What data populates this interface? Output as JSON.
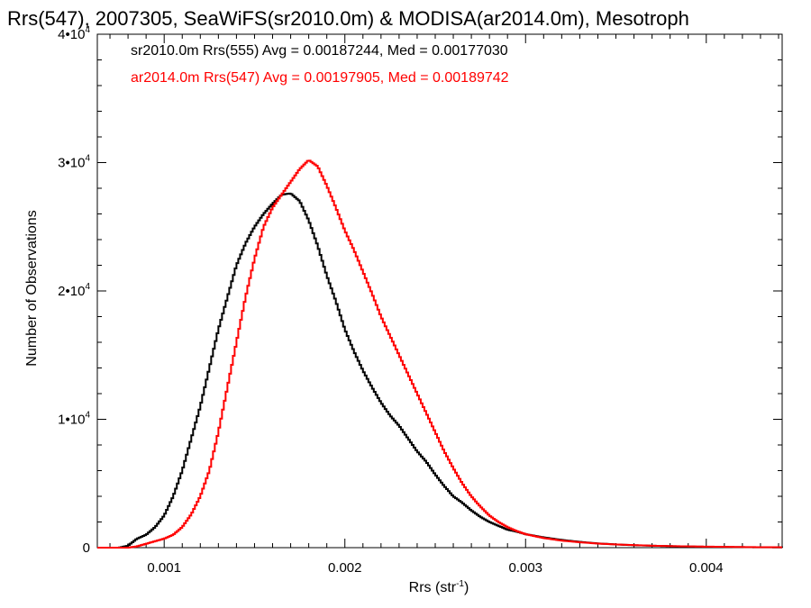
{
  "chart_data": {
    "type": "histogram-step",
    "title": "Rrs(547), 2007305, SeaWiFS(sr2010.0m) & MODISA(ar2014.0m), Mesotroph",
    "xlabel_main": "Rrs (str",
    "xlabel_sup": "-1",
    "xlabel_end": ")",
    "ylabel": "Number of Observations",
    "xlim": [
      0.00063,
      0.00442
    ],
    "ylim": [
      0,
      40000
    ],
    "x_ticks": [
      {
        "value": 0.001,
        "label": "0.001"
      },
      {
        "value": 0.002,
        "label": "0.002"
      },
      {
        "value": 0.003,
        "label": "0.003"
      },
      {
        "value": 0.004,
        "label": "0.004"
      }
    ],
    "y_ticks": [
      {
        "value": 0,
        "base": "0",
        "exp": ""
      },
      {
        "value": 10000,
        "base": "1•10",
        "exp": "4"
      },
      {
        "value": 20000,
        "base": "2•10",
        "exp": "4"
      },
      {
        "value": 30000,
        "base": "3•10",
        "exp": "4"
      },
      {
        "value": 40000,
        "base": "4•10",
        "exp": "4"
      }
    ],
    "legend_placement": "top-left",
    "series": [
      {
        "legend": "sr2010.0m Rrs(555) Avg = 0.00187244, Med = 0.00177030",
        "color": "#000000",
        "points": [
          [
            0.00063,
            0
          ],
          [
            0.00075,
            0
          ],
          [
            0.0008,
            150
          ],
          [
            0.00085,
            700
          ],
          [
            0.0009,
            1000
          ],
          [
            0.00095,
            1600
          ],
          [
            0.001,
            2500
          ],
          [
            0.00105,
            4000
          ],
          [
            0.0011,
            6000
          ],
          [
            0.00115,
            8500
          ],
          [
            0.0012,
            11000
          ],
          [
            0.00125,
            14000
          ],
          [
            0.0013,
            17000
          ],
          [
            0.00135,
            19500
          ],
          [
            0.0014,
            22000
          ],
          [
            0.00145,
            23700
          ],
          [
            0.0015,
            25000
          ],
          [
            0.00155,
            26000
          ],
          [
            0.0016,
            26800
          ],
          [
            0.00165,
            27500
          ],
          [
            0.0017,
            27600
          ],
          [
            0.00175,
            27000
          ],
          [
            0.0018,
            25500
          ],
          [
            0.00185,
            23500
          ],
          [
            0.0019,
            21200
          ],
          [
            0.00195,
            19200
          ],
          [
            0.002,
            17000
          ],
          [
            0.00205,
            15300
          ],
          [
            0.0021,
            13800
          ],
          [
            0.00215,
            12500
          ],
          [
            0.0022,
            11300
          ],
          [
            0.00225,
            10300
          ],
          [
            0.0023,
            9500
          ],
          [
            0.00235,
            8500
          ],
          [
            0.0024,
            7500
          ],
          [
            0.00245,
            6700
          ],
          [
            0.0025,
            5700
          ],
          [
            0.00255,
            4800
          ],
          [
            0.0026,
            4000
          ],
          [
            0.00265,
            3500
          ],
          [
            0.0027,
            2900
          ],
          [
            0.00275,
            2400
          ],
          [
            0.0028,
            2000
          ],
          [
            0.00285,
            1700
          ],
          [
            0.0029,
            1400
          ],
          [
            0.00295,
            1250
          ],
          [
            0.003,
            1050
          ],
          [
            0.0031,
            800
          ],
          [
            0.0032,
            600
          ],
          [
            0.0033,
            450
          ],
          [
            0.0034,
            330
          ],
          [
            0.0035,
            250
          ],
          [
            0.0036,
            190
          ],
          [
            0.0037,
            150
          ],
          [
            0.0038,
            120
          ],
          [
            0.0039,
            90
          ],
          [
            0.004,
            70
          ],
          [
            0.0041,
            50
          ],
          [
            0.0042,
            40
          ],
          [
            0.0043,
            25
          ],
          [
            0.00442,
            20
          ]
        ]
      },
      {
        "legend": "ar2014.0m Rrs(547) Avg = 0.00197905, Med = 0.00189742",
        "color": "#ff0000",
        "points": [
          [
            0.00063,
            0
          ],
          [
            0.0008,
            0
          ],
          [
            0.00085,
            100
          ],
          [
            0.0009,
            300
          ],
          [
            0.00095,
            500
          ],
          [
            0.001,
            700
          ],
          [
            0.00105,
            1000
          ],
          [
            0.0011,
            1600
          ],
          [
            0.00115,
            2600
          ],
          [
            0.0012,
            4000
          ],
          [
            0.00125,
            6000
          ],
          [
            0.0013,
            9000
          ],
          [
            0.00135,
            12500
          ],
          [
            0.0014,
            16000
          ],
          [
            0.00145,
            19500
          ],
          [
            0.0015,
            22500
          ],
          [
            0.00155,
            25000
          ],
          [
            0.0016,
            26500
          ],
          [
            0.00165,
            27500
          ],
          [
            0.0017,
            28500
          ],
          [
            0.00175,
            29500
          ],
          [
            0.0018,
            30200
          ],
          [
            0.00185,
            29700
          ],
          [
            0.0019,
            28200
          ],
          [
            0.00195,
            26500
          ],
          [
            0.002,
            24700
          ],
          [
            0.00205,
            23200
          ],
          [
            0.0021,
            21500
          ],
          [
            0.00215,
            19800
          ],
          [
            0.0022,
            18000
          ],
          [
            0.00225,
            16500
          ],
          [
            0.0023,
            15000
          ],
          [
            0.00235,
            13500
          ],
          [
            0.0024,
            12000
          ],
          [
            0.00245,
            10500
          ],
          [
            0.0025,
            9000
          ],
          [
            0.00255,
            7500
          ],
          [
            0.0026,
            6200
          ],
          [
            0.00265,
            5000
          ],
          [
            0.0027,
            4000
          ],
          [
            0.00275,
            3200
          ],
          [
            0.0028,
            2500
          ],
          [
            0.00285,
            2000
          ],
          [
            0.0029,
            1600
          ],
          [
            0.00295,
            1300
          ],
          [
            0.003,
            1050
          ],
          [
            0.0031,
            750
          ],
          [
            0.0032,
            550
          ],
          [
            0.0033,
            420
          ],
          [
            0.0034,
            320
          ],
          [
            0.0035,
            250
          ],
          [
            0.0036,
            200
          ],
          [
            0.0037,
            150
          ],
          [
            0.0038,
            120
          ],
          [
            0.0039,
            100
          ],
          [
            0.004,
            80
          ],
          [
            0.0041,
            65
          ],
          [
            0.0042,
            50
          ],
          [
            0.0043,
            35
          ],
          [
            0.00442,
            30
          ]
        ]
      }
    ]
  }
}
